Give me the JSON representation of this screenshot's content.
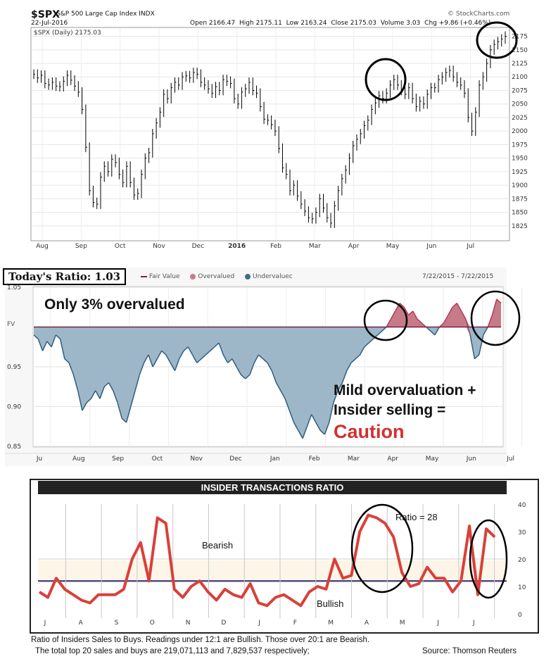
{
  "panel1": {
    "ticker": "$SPX",
    "name": "S&P 500 Large Cap Index INDX",
    "date": "22-Jul-2016",
    "source": "© StockCharts.com",
    "open_label": "Open",
    "open": "2166.47",
    "high_label": "High",
    "high": "2175.11",
    "low_label": "Low",
    "low": "2163.24",
    "close_label": "Close",
    "close": "2175.03",
    "volume_label": "Volume",
    "volume": "3.03",
    "chg_label": "Chg",
    "chg": "+9.86 (+0.46%)",
    "legend": "$SPX (Daily) 2175.03"
  },
  "panel2": {
    "ratio_label": "Today's Ratio: 1.03",
    "legend_fair": "Fair Value",
    "legend_over": "Overvalued",
    "legend_under": "Undervaluec",
    "date_range": "7/22/2015 - 7/22/2015",
    "fv_label": "FV",
    "note_top": "Only 3% overvalued",
    "note_mid1": "Mild overvaluation +",
    "note_mid2": "Insider selling =",
    "note_caution": "Caution"
  },
  "panel3": {
    "title": "INSIDER TRANSACTIONS RATIO",
    "bearish_label": "Bearish",
    "bullish_label": "Bullish",
    "ratio_note": "Ratio = 28",
    "caption1": "Ratio of Insiders Sales to Buys. Readings under 12:1 are Bullish. Those over 20:1 are Bearish.",
    "caption2": "The total top 20 sales and buys are 219,071,113 and 7,829,537 respectively;",
    "caption3": "Source: Thomson Reuters"
  },
  "colors": {
    "price": "#000000",
    "overvalued": "#c77b88",
    "undervalued": "#9db7c9",
    "fair": "#7a2140",
    "ratio_line": "#d9403a",
    "circle": "#000000"
  },
  "chart_data": [
    {
      "type": "line",
      "title": "$SPX (Daily) 2175.03",
      "x_labels": [
        "Aug",
        "Sep",
        "Oct",
        "Nov",
        "Dec",
        "2016",
        "Feb",
        "Mar",
        "Apr",
        "May",
        "Jun",
        "Jul"
      ],
      "ylim": [
        1800,
        2190
      ],
      "yticks": [
        1825,
        1850,
        1875,
        1900,
        1925,
        1950,
        1975,
        2000,
        2025,
        2050,
        2075,
        2100,
        2125,
        2150,
        2175
      ],
      "series": [
        {
          "values": [
            2105,
            2098,
            2103,
            2088,
            2085,
            2090,
            2083,
            2082,
            2092,
            2103,
            2094,
            2083,
            2072,
            2040,
            1970,
            1890,
            1868,
            1865,
            1915,
            1935,
            1925,
            1948,
            1942,
            1920,
            1905,
            1935,
            1905,
            1882,
            1885,
            1920,
            1950,
            1960,
            1995,
            2015,
            2035,
            2068,
            2060,
            2080,
            2090,
            2085,
            2100,
            2102,
            2098,
            2108,
            2105,
            2090,
            2085,
            2078,
            2070,
            2082,
            2075,
            2095,
            2092,
            2088,
            2060,
            2050,
            2072,
            2078,
            2090,
            2075,
            2070,
            2045,
            2022,
            2020,
            2012,
            2000,
            1968,
            1932,
            1920,
            1890,
            1900,
            1880,
            1865,
            1852,
            1840,
            1838,
            1850,
            1875,
            1858,
            1840,
            1830,
            1862,
            1890,
            1912,
            1928,
            1950,
            1973,
            1985,
            1995,
            2010,
            2020,
            2040,
            2052,
            2065,
            2060,
            2070,
            2085,
            2095,
            2085,
            2075,
            2068,
            2080,
            2060,
            2045,
            2055,
            2050,
            2068,
            2080,
            2080,
            2095,
            2100,
            2108,
            2112,
            2100,
            2090,
            2085,
            2070,
            2025,
            2000,
            2035,
            2085,
            2100,
            2125,
            2150,
            2160,
            2165,
            2170,
            2175
          ]
        }
      ]
    },
    {
      "type": "area",
      "title": "",
      "x_labels": [
        "Ju",
        "Aug",
        "Sep",
        "Oct",
        "Nov",
        "Dec",
        "Jan",
        "Feb",
        "Mar",
        "Apr",
        "May",
        "Jun",
        "Jul"
      ],
      "ylim": [
        0.85,
        1.05
      ],
      "yticks": [
        0.85,
        0.9,
        0.95,
        1.05
      ],
      "fair_value": 1.0,
      "series": [
        {
          "name": "Fair Value",
          "values": [
            0.99,
            0.985,
            0.97,
            0.982,
            0.975,
            0.99,
            0.985,
            0.96,
            0.955,
            0.94,
            0.92,
            0.895,
            0.905,
            0.91,
            0.92,
            0.91,
            0.925,
            0.93,
            0.92,
            0.905,
            0.885,
            0.88,
            0.9,
            0.92,
            0.94,
            0.955,
            0.965,
            0.95,
            0.96,
            0.97,
            0.965,
            0.955,
            0.945,
            0.96,
            0.97,
            0.975,
            0.965,
            0.955,
            0.96,
            0.965,
            0.97,
            0.975,
            0.98,
            0.965,
            0.955,
            0.96,
            0.95,
            0.94,
            0.935,
            0.94,
            0.955,
            0.965,
            0.96,
            0.955,
            0.945,
            0.93,
            0.92,
            0.91,
            0.895,
            0.88,
            0.87,
            0.86,
            0.875,
            0.89,
            0.88,
            0.87,
            0.865,
            0.88,
            0.905,
            0.92,
            0.93,
            0.945,
            0.955,
            0.96,
            0.965,
            0.975,
            0.98,
            0.985,
            0.99,
            0.995,
            1.0,
            1.01,
            1.02,
            1.03,
            1.025,
            1.015,
            1.02,
            1.01,
            1.005,
            1.0,
            0.995,
            0.99,
            1.0,
            1.005,
            1.015,
            1.025,
            1.03,
            1.02,
            1.01,
            0.99,
            0.96,
            0.965,
            0.99,
            1.0,
            1.015,
            1.035,
            1.03
          ]
        }
      ]
    },
    {
      "type": "line",
      "title": "INSIDER TRANSACTIONS RATIO",
      "x_labels": [
        "J",
        "A",
        "S",
        "O",
        "N",
        "D",
        "J",
        "F",
        "M",
        "A",
        "M",
        "J",
        "J"
      ],
      "ylim": [
        0,
        40
      ],
      "yticks": [
        0,
        10,
        20,
        30,
        40
      ],
      "series": [
        {
          "values": [
            8,
            6,
            13,
            9,
            7,
            5,
            4,
            7,
            7,
            7,
            9,
            20,
            26,
            12,
            35,
            33,
            9,
            6,
            10,
            12,
            8,
            5,
            9,
            7,
            6,
            11,
            4,
            3,
            6,
            7,
            5,
            3,
            8,
            10,
            9,
            20,
            13,
            14,
            30,
            36,
            35,
            33,
            28,
            15,
            10,
            11,
            17,
            13,
            13,
            8,
            12,
            32,
            7,
            31,
            28
          ]
        }
      ]
    }
  ]
}
